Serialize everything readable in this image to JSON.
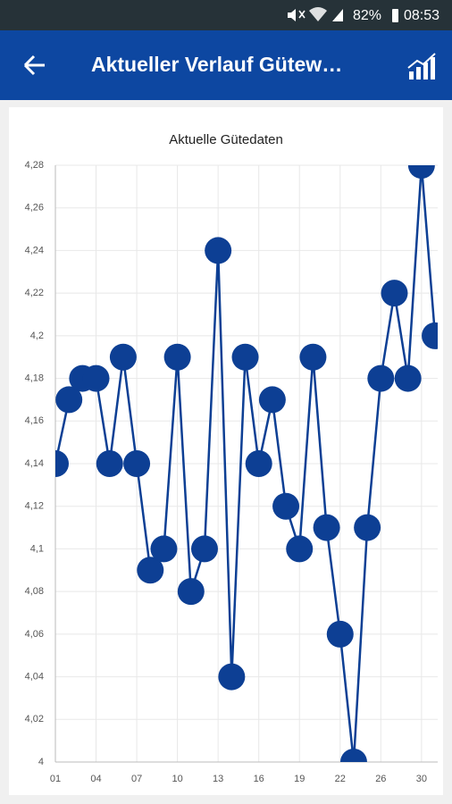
{
  "status_bar": {
    "battery": "82%",
    "time": "08:53"
  },
  "app_bar": {
    "title": "Aktueller Verlauf Gütew…"
  },
  "chart_data": {
    "type": "line",
    "title": "Aktuelle Gütedaten",
    "categories": [
      "01",
      null,
      null,
      "04",
      null,
      null,
      "07",
      null,
      null,
      "10",
      null,
      null,
      "13",
      null,
      null,
      "16",
      null,
      null,
      "19",
      null,
      null,
      "22",
      null,
      null,
      "26",
      null,
      null,
      "30",
      null
    ],
    "values": [
      4.14,
      4.17,
      4.18,
      4.18,
      4.14,
      4.19,
      4.14,
      4.09,
      4.1,
      4.19,
      4.08,
      4.1,
      4.24,
      4.04,
      4.19,
      4.14,
      4.17,
      4.12,
      4.1,
      4.19,
      4.11,
      4.06,
      4.0,
      4.11,
      4.18,
      4.22,
      4.18,
      4.28,
      4.2
    ],
    "color": "#0d3f94",
    "ylim": [
      4,
      4.28
    ],
    "yticks": [
      4,
      {
        "value": 4.02,
        "label": "4,02"
      },
      {
        "value": 4.04,
        "label": "4,04"
      },
      {
        "value": 4.06,
        "label": "4,06"
      },
      {
        "value": 4.08,
        "label": "4,08"
      },
      {
        "value": 4.1,
        "label": "4,1"
      },
      {
        "value": 4.12,
        "label": "4,12"
      },
      {
        "value": 4.14,
        "label": "4,14"
      },
      {
        "value": 4.16,
        "label": "4,16"
      },
      {
        "value": 4.18,
        "label": "4,18"
      },
      {
        "value": 4.2,
        "label": "4,2"
      },
      {
        "value": 4.22,
        "label": "4,22"
      },
      {
        "value": 4.24,
        "label": "4,24"
      },
      {
        "value": 4.26,
        "label": "4,26"
      },
      {
        "value": 4.28,
        "label": "4,28"
      }
    ],
    "grid": true
  }
}
